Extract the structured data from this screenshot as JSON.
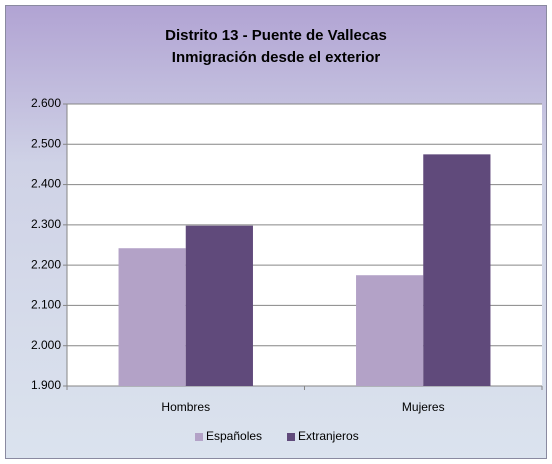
{
  "chart_data": {
    "type": "bar",
    "title": "Distrito 13 - Puente de Vallecas",
    "subtitle": "Inmigración desde el exterior",
    "categories": [
      "Hombres",
      "Mujeres"
    ],
    "series": [
      {
        "name": "Españoles",
        "color": "#b3a2c7",
        "values": [
          2242,
          2175
        ]
      },
      {
        "name": "Extranjeros",
        "color": "#604a7b",
        "values": [
          2298,
          2475
        ]
      }
    ],
    "ylim": [
      1900,
      2600
    ],
    "yticks": [
      {
        "value": 1900,
        "label": "1.900"
      },
      {
        "value": 2000,
        "label": "2.000"
      },
      {
        "value": 2100,
        "label": "2.100"
      },
      {
        "value": 2200,
        "label": "2.200"
      },
      {
        "value": 2300,
        "label": "2.300"
      },
      {
        "value": 2400,
        "label": "2.400"
      },
      {
        "value": 2500,
        "label": "2.500"
      },
      {
        "value": 2600,
        "label": "2.600"
      }
    ],
    "grid": true,
    "legend": "bottom"
  }
}
